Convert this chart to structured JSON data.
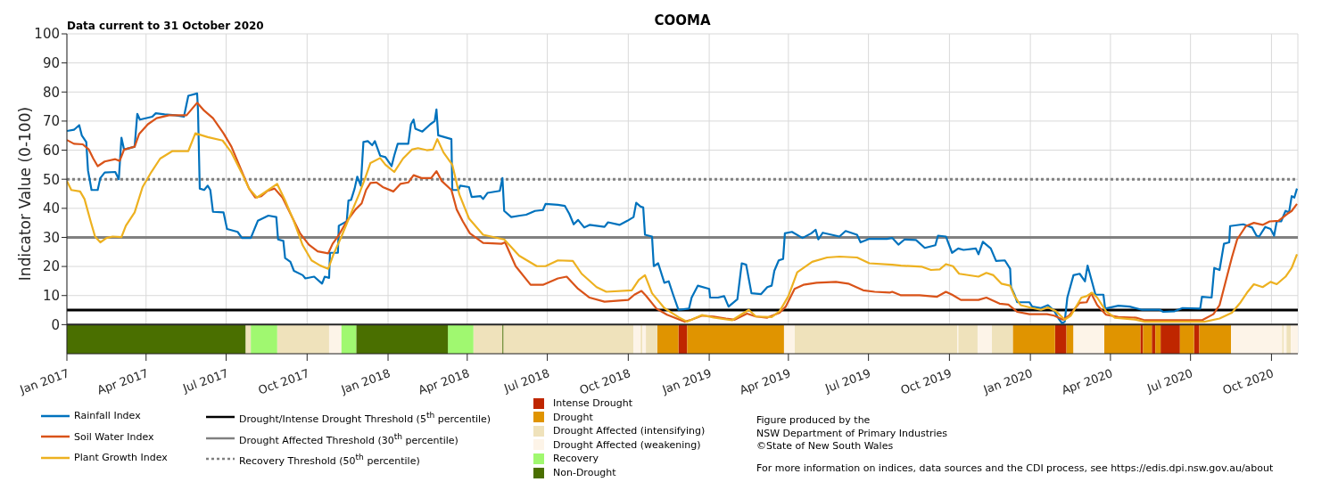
{
  "chart_data": {
    "type": "line",
    "title": "COOMA",
    "ylabel": "Indicator Value (0-100)",
    "annotations": [
      "Data current to 31 October 2020",
      "Figure produced by the",
      "NSW Department of Primary Industries",
      "©State of New South Wales",
      "For more information on indices, data sources and the CDI process, see https://edis.dpi.nsw.gov.au/about"
    ],
    "xlim": [
      "2017-01-01",
      "2020-10-31"
    ],
    "xticks": [
      {
        "value": "2017-01",
        "label": "Jan 2017"
      },
      {
        "value": "2017-04",
        "label": "Apr 2017"
      },
      {
        "value": "2017-07",
        "label": "Jul 2017"
      },
      {
        "value": "2017-10",
        "label": "Oct 2017"
      },
      {
        "value": "2018-01",
        "label": "Jan 2018"
      },
      {
        "value": "2018-04",
        "label": "Apr 2018"
      },
      {
        "value": "2018-07",
        "label": "Jul 2018"
      },
      {
        "value": "2018-10",
        "label": "Oct 2018"
      },
      {
        "value": "2019-01",
        "label": "Jan 2019"
      },
      {
        "value": "2019-04",
        "label": "Apr 2019"
      },
      {
        "value": "2019-07",
        "label": "Jul 2019"
      },
      {
        "value": "2019-10",
        "label": "Oct 2019"
      },
      {
        "value": "2020-01",
        "label": "Jan 2020"
      },
      {
        "value": "2020-04",
        "label": "Apr 2020"
      },
      {
        "value": "2020-07",
        "label": "Jul 2020"
      },
      {
        "value": "2020-10",
        "label": "Oct 2020"
      }
    ],
    "ylim": [
      -10,
      100
    ],
    "yticks": [
      0,
      10,
      20,
      30,
      40,
      50,
      60,
      70,
      80,
      90,
      100
    ],
    "grid": true,
    "legend": "bottom",
    "marker": "none",
    "line_style": "solid",
    "series": [
      {
        "name": "Rainfall Index",
        "color": "#0072bd",
        "x": [
          "2017-01-01",
          "2017-01-09",
          "2017-01-15",
          "2017-01-18",
          "2017-01-23",
          "2017-01-25",
          "2017-01-29",
          "2017-02-05",
          "2017-02-08",
          "2017-02-13",
          "2017-02-25",
          "2017-03-01",
          "2017-03-04",
          "2017-03-07",
          "2017-03-19",
          "2017-03-22",
          "2017-03-25",
          "2017-04-08",
          "2017-04-12",
          "2017-04-22",
          "2017-05-04",
          "2017-05-14",
          "2017-05-19",
          "2017-05-29",
          "2017-05-30",
          "2017-06-01",
          "2017-06-06",
          "2017-06-10",
          "2017-06-13",
          "2017-06-16",
          "2017-06-28",
          "2017-07-02",
          "2017-07-14",
          "2017-07-19",
          "2017-07-29",
          "2017-08-06",
          "2017-08-18",
          "2017-08-27",
          "2017-08-29",
          "2017-09-04",
          "2017-09-06",
          "2017-09-12",
          "2017-09-16",
          "2017-09-26",
          "2017-09-29",
          "2017-10-09",
          "2017-10-18",
          "2017-10-21",
          "2017-10-26",
          "2017-10-27",
          "2017-11-05",
          "2017-11-06",
          "2017-11-15",
          "2017-11-17",
          "2017-11-20",
          "2017-11-24",
          "2017-11-27",
          "2017-12-01",
          "2017-12-04",
          "2017-12-09",
          "2017-12-14",
          "2017-12-17",
          "2017-12-23",
          "2017-12-29",
          "2018-01-05",
          "2018-01-08",
          "2018-01-12",
          "2018-01-24",
          "2018-01-27",
          "2018-01-30",
          "2018-02-01",
          "2018-02-09",
          "2018-02-18",
          "2018-02-23",
          "2018-02-25",
          "2018-02-27",
          "2018-03-14",
          "2018-03-15",
          "2018-03-22",
          "2018-03-24",
          "2018-04-03",
          "2018-04-06",
          "2018-04-16",
          "2018-04-19",
          "2018-04-24",
          "2018-05-08",
          "2018-05-11",
          "2018-05-13",
          "2018-05-21",
          "2018-05-31",
          "2018-06-07",
          "2018-06-17",
          "2018-06-26",
          "2018-06-29",
          "2018-07-13",
          "2018-07-21",
          "2018-07-26",
          "2018-07-31",
          "2018-08-05",
          "2018-08-12",
          "2018-08-18",
          "2018-09-04",
          "2018-09-08",
          "2018-09-21",
          "2018-09-30",
          "2018-10-07",
          "2018-10-10",
          "2018-10-15",
          "2018-10-18",
          "2018-10-20",
          "2018-10-28",
          "2018-10-30",
          "2018-11-04",
          "2018-11-11",
          "2018-11-16",
          "2018-11-21",
          "2018-11-27",
          "2018-12-09",
          "2018-12-12",
          "2018-12-19",
          "2019-01-01",
          "2019-01-02",
          "2019-01-11",
          "2019-01-18",
          "2019-01-23",
          "2019-02-02",
          "2019-02-07",
          "2019-02-12",
          "2019-02-18",
          "2019-03-01",
          "2019-03-08",
          "2019-03-13",
          "2019-03-16",
          "2019-03-21",
          "2019-03-26",
          "2019-03-28",
          "2019-04-05",
          "2019-04-17",
          "2019-04-27",
          "2019-05-02",
          "2019-05-05",
          "2019-05-10",
          "2019-05-29",
          "2019-06-05",
          "2019-06-18",
          "2019-06-22",
          "2019-07-02",
          "2019-07-22",
          "2019-07-28",
          "2019-08-04",
          "2019-08-11",
          "2019-08-24",
          "2019-09-03",
          "2019-09-15",
          "2019-09-18",
          "2019-09-27",
          "2019-10-04",
          "2019-10-11",
          "2019-10-17",
          "2019-10-31",
          "2019-11-03",
          "2019-11-08",
          "2019-11-17",
          "2019-11-23",
          "2019-12-03",
          "2019-12-09",
          "2019-12-10",
          "2019-12-14",
          "2019-12-17",
          "2019-12-31",
          "2020-01-03",
          "2020-01-13",
          "2020-01-21",
          "2020-01-28",
          "2020-02-02",
          "2020-02-06",
          "2020-02-09",
          "2020-02-12",
          "2020-02-19",
          "2020-02-26",
          "2020-03-03",
          "2020-03-06",
          "2020-03-10",
          "2020-03-15",
          "2020-03-24",
          "2020-03-26",
          "2020-04-10",
          "2020-04-23",
          "2020-05-07",
          "2020-05-27",
          "2020-05-31",
          "2020-06-13",
          "2020-06-22",
          "2020-07-12",
          "2020-07-14",
          "2020-07-25",
          "2020-07-28",
          "2020-08-03",
          "2020-08-08",
          "2020-08-14",
          "2020-08-15",
          "2020-08-30",
          "2020-09-09",
          "2020-09-14",
          "2020-09-17",
          "2020-09-24",
          "2020-09-30",
          "2020-10-04",
          "2020-10-07",
          "2020-10-12",
          "2020-10-17",
          "2020-10-21",
          "2020-10-24",
          "2020-10-27",
          "2020-10-30"
        ],
        "values": [
          66.6,
          67,
          68.6,
          65,
          62.8,
          53,
          46.3,
          46.3,
          50.4,
          52.3,
          52.5,
          50,
          64.3,
          60.2,
          61.2,
          72.5,
          70.5,
          71.5,
          72.7,
          72.3,
          72,
          71.5,
          78.7,
          79.5,
          73.6,
          46.8,
          46.3,
          47.8,
          46.3,
          38.8,
          38.6,
          32.9,
          31.9,
          29.8,
          29.8,
          35.7,
          37.5,
          37,
          29.3,
          28.8,
          22.9,
          21.6,
          18.5,
          17,
          15.9,
          16.5,
          14.1,
          16.5,
          16.1,
          24.7,
          24.7,
          34,
          35.5,
          42.7,
          42.9,
          46.8,
          50.9,
          47.8,
          62.8,
          63.1,
          61.7,
          63.1,
          58.1,
          57.6,
          54.5,
          58.1,
          62.2,
          62.2,
          68.9,
          70.5,
          67.4,
          66.4,
          68.9,
          70,
          74,
          65.1,
          63.8,
          46.3,
          46.3,
          47.8,
          47.3,
          43.9,
          44.2,
          43.2,
          45.3,
          46,
          50.4,
          39.1,
          37,
          37.5,
          37.8,
          39.1,
          39.4,
          41.5,
          41.2,
          40.8,
          38.1,
          34.5,
          36,
          33.4,
          34.3,
          33.6,
          35.2,
          34.3,
          35.7,
          37,
          41.9,
          40.6,
          40.3,
          30.9,
          30.3,
          20.1,
          21.1,
          14.4,
          14.9,
          10.3,
          5.1,
          5.5,
          9.3,
          13.4,
          12.3,
          9.3,
          9.3,
          9.8,
          6.2,
          8.7,
          21.1,
          20.6,
          10.8,
          10.5,
          12.9,
          13.4,
          18.5,
          22.1,
          22.6,
          31.4,
          31.9,
          29.8,
          31.4,
          32.6,
          29.3,
          31.6,
          30.3,
          32.2,
          30.9,
          28.3,
          29.5,
          29.5,
          29.8,
          27.5,
          29.3,
          29.1,
          26.4,
          27.3,
          30.6,
          30.3,
          24.7,
          26.2,
          25.7,
          26.2,
          24.2,
          28.5,
          26.2,
          21.9,
          22.1,
          19.2,
          12.9,
          10.3,
          7.7,
          7.7,
          6.2,
          5.7,
          6.7,
          4.8,
          2.1,
          0.5,
          1,
          9.3,
          17,
          17.5,
          14.9,
          20.3,
          15.9,
          10.3,
          10.3,
          5.5,
          6.5,
          6.2,
          5.1,
          5.1,
          4.4,
          4.6,
          5.7,
          5.5,
          9.6,
          9.3,
          19.5,
          18.8,
          27.8,
          28.3,
          33.9,
          34.5,
          33.4,
          30.6,
          30.3,
          33.6,
          32.9,
          30.6,
          35.5,
          35.5,
          39.1,
          38.6,
          44.2,
          43.7,
          46.8
        ]
      },
      {
        "name": "Soil Water Index",
        "color": "#d95319",
        "x": [
          "2017-01-01",
          "2017-01-09",
          "2017-01-19",
          "2017-01-26",
          "2017-01-31",
          "2017-02-05",
          "2017-02-13",
          "2017-02-25",
          "2017-03-02",
          "2017-03-07",
          "2017-03-19",
          "2017-03-24",
          "2017-04-03",
          "2017-04-13",
          "2017-04-27",
          "2017-05-17",
          "2017-05-29",
          "2017-06-06",
          "2017-06-16",
          "2017-06-28",
          "2017-07-07",
          "2017-07-17",
          "2017-07-27",
          "2017-08-03",
          "2017-08-10",
          "2017-08-17",
          "2017-08-25",
          "2017-09-03",
          "2017-09-13",
          "2017-09-23",
          "2017-10-03",
          "2017-10-13",
          "2017-10-25",
          "2017-10-30",
          "2017-11-05",
          "2017-11-15",
          "2017-11-25",
          "2017-12-02",
          "2017-12-07",
          "2017-12-12",
          "2017-12-19",
          "2017-12-26",
          "2018-01-07",
          "2018-01-15",
          "2018-01-24",
          "2018-01-30",
          "2018-02-08",
          "2018-02-19",
          "2018-02-25",
          "2018-03-03",
          "2018-03-14",
          "2018-03-20",
          "2018-03-27",
          "2018-04-04",
          "2018-04-19",
          "2018-05-10",
          "2018-05-14",
          "2018-05-26",
          "2018-06-12",
          "2018-06-26",
          "2018-07-13",
          "2018-07-23",
          "2018-08-05",
          "2018-08-18",
          "2018-09-04",
          "2018-10-01",
          "2018-10-08",
          "2018-10-16",
          "2018-10-21",
          "2018-11-02",
          "2018-11-14",
          "2018-11-27",
          "2018-12-04",
          "2018-12-12",
          "2018-12-24",
          "2019-01-06",
          "2019-01-20",
          "2019-01-30",
          "2019-02-13",
          "2019-02-23",
          "2019-03-08",
          "2019-03-22",
          "2019-03-29",
          "2019-04-08",
          "2019-04-18",
          "2019-05-03",
          "2019-05-25",
          "2019-06-08",
          "2019-06-25",
          "2019-07-08",
          "2019-07-25",
          "2019-07-28",
          "2019-08-07",
          "2019-08-28",
          "2019-09-17",
          "2019-09-27",
          "2019-10-04",
          "2019-10-14",
          "2019-11-03",
          "2019-11-12",
          "2019-11-27",
          "2019-12-07",
          "2019-12-17",
          "2019-12-31",
          "2020-01-20",
          "2020-01-28",
          "2020-02-07",
          "2020-02-14",
          "2020-02-26",
          "2020-03-05",
          "2020-03-10",
          "2020-03-17",
          "2020-03-27",
          "2020-04-10",
          "2020-04-30",
          "2020-05-10",
          "2020-07-14",
          "2020-07-27",
          "2020-08-03",
          "2020-08-10",
          "2020-08-17",
          "2020-08-23",
          "2020-09-02",
          "2020-09-11",
          "2020-09-21",
          "2020-09-29",
          "2020-10-09",
          "2020-10-19",
          "2020-10-24",
          "2020-10-30"
        ],
        "values": [
          63.5,
          62.2,
          62,
          60.2,
          57.1,
          54.5,
          56.1,
          56.9,
          56.3,
          60.2,
          61.2,
          65.5,
          68.9,
          71,
          72,
          72,
          76.3,
          73.6,
          71,
          65.8,
          61.2,
          54,
          46.8,
          43.7,
          44.2,
          46,
          46.8,
          43.7,
          37.6,
          31.4,
          27.5,
          25.2,
          24.5,
          27.8,
          30.3,
          35.5,
          39.6,
          41.7,
          46.3,
          48.7,
          48.9,
          47.3,
          45.8,
          48.4,
          48.9,
          51.4,
          50.4,
          50.4,
          52.8,
          49.4,
          46.3,
          39.6,
          35.5,
          31.4,
          28.1,
          27.8,
          28.3,
          20.1,
          13.7,
          13.7,
          15.9,
          16.5,
          12.3,
          9.3,
          7.9,
          8.5,
          10.3,
          11.6,
          10,
          5.5,
          3.4,
          1.9,
          1,
          1.7,
          3.1,
          2.8,
          2.1,
          1.7,
          3.8,
          2.8,
          2.4,
          4.1,
          6.2,
          12.3,
          13.7,
          14.4,
          14.7,
          14.1,
          11.8,
          11.3,
          11,
          11.3,
          10.1,
          10.1,
          9.6,
          11.3,
          10.3,
          8.5,
          8.5,
          9.3,
          7.2,
          6.9,
          4.4,
          3.6,
          3.6,
          3.1,
          1.7,
          3.1,
          7.5,
          7.7,
          10.8,
          6.7,
          3.4,
          2.6,
          2.4,
          1.5,
          1.5,
          3.6,
          6.7,
          14.9,
          23.1,
          29.3,
          33.9,
          35,
          34.3,
          35.5,
          35.7,
          38.1,
          39.1,
          41.5
        ]
      },
      {
        "name": "Plant Growth Index",
        "color": "#edb120",
        "x": [
          "2017-01-01",
          "2017-01-06",
          "2017-01-16",
          "2017-01-21",
          "2017-01-28",
          "2017-02-02",
          "2017-02-08",
          "2017-02-15",
          "2017-02-22",
          "2017-03-04",
          "2017-03-09",
          "2017-03-19",
          "2017-03-28",
          "2017-04-07",
          "2017-04-17",
          "2017-05-01",
          "2017-05-19",
          "2017-05-27",
          "2017-06-10",
          "2017-06-27",
          "2017-07-07",
          "2017-07-19",
          "2017-07-27",
          "2017-08-05",
          "2017-08-13",
          "2017-08-28",
          "2017-09-06",
          "2017-09-16",
          "2017-09-26",
          "2017-10-06",
          "2017-10-16",
          "2017-10-25",
          "2017-10-31",
          "2017-11-09",
          "2017-11-19",
          "2017-11-29",
          "2017-12-06",
          "2017-12-12",
          "2017-12-23",
          "2017-12-29",
          "2018-01-08",
          "2018-01-18",
          "2018-01-28",
          "2018-02-04",
          "2018-02-14",
          "2018-02-21",
          "2018-02-26",
          "2018-03-05",
          "2018-03-15",
          "2018-03-23",
          "2018-04-03",
          "2018-04-19",
          "2018-05-13",
          "2018-05-30",
          "2018-06-19",
          "2018-06-29",
          "2018-07-13",
          "2018-07-30",
          "2018-08-09",
          "2018-08-26",
          "2018-09-06",
          "2018-10-05",
          "2018-10-13",
          "2018-10-20",
          "2018-10-28",
          "2018-11-11",
          "2018-11-27",
          "2018-12-07",
          "2018-12-24",
          "2019-01-06",
          "2019-01-27",
          "2019-02-08",
          "2019-02-15",
          "2019-02-23",
          "2019-03-13",
          "2019-03-22",
          "2019-04-01",
          "2019-04-11",
          "2019-04-28",
          "2019-05-15",
          "2019-05-29",
          "2019-06-18",
          "2019-07-02",
          "2019-07-28",
          "2019-08-07",
          "2019-08-31",
          "2019-09-10",
          "2019-09-20",
          "2019-09-27",
          "2019-10-05",
          "2019-10-12",
          "2019-11-03",
          "2019-11-12",
          "2019-11-20",
          "2019-11-29",
          "2019-12-09",
          "2019-12-14",
          "2019-12-21",
          "2020-01-03",
          "2020-01-13",
          "2020-01-21",
          "2020-01-30",
          "2020-02-09",
          "2020-02-16",
          "2020-02-28",
          "2020-03-05",
          "2020-03-11",
          "2020-03-17",
          "2020-03-27",
          "2020-04-06",
          "2020-04-30",
          "2020-05-10",
          "2020-07-17",
          "2020-08-03",
          "2020-08-17",
          "2020-08-27",
          "2020-09-04",
          "2020-09-11",
          "2020-09-21",
          "2020-09-30",
          "2020-10-07",
          "2020-10-17",
          "2020-10-24",
          "2020-10-30"
        ],
        "values": [
          49.4,
          46.3,
          45.8,
          43.2,
          35.5,
          30.3,
          28.3,
          29.8,
          30.3,
          30.1,
          34,
          38.6,
          47.3,
          52.5,
          57.1,
          59.7,
          59.7,
          65.8,
          64.5,
          63.3,
          59.2,
          52,
          46.8,
          43.7,
          45.3,
          48.4,
          42.7,
          35.5,
          27.3,
          22.1,
          20.3,
          19.2,
          24.2,
          30.3,
          37.6,
          44.8,
          50.4,
          55.6,
          57.3,
          55,
          52.5,
          57.1,
          60.2,
          60.7,
          60,
          60.2,
          63.8,
          59.2,
          55,
          44.8,
          36.5,
          30.9,
          29.3,
          23.7,
          20.1,
          20.1,
          22.1,
          21.9,
          17.5,
          12.9,
          11.3,
          11.8,
          15.4,
          17,
          10.8,
          5.7,
          2.6,
          1,
          3.3,
          2.4,
          1.5,
          3.8,
          5.1,
          2.8,
          2.6,
          4.6,
          9.8,
          18,
          21.6,
          23.1,
          23.4,
          23.1,
          21.1,
          20.6,
          20.3,
          19.9,
          18.8,
          19,
          20.8,
          20.1,
          17.5,
          16.5,
          17.8,
          17,
          14.1,
          13.4,
          9.8,
          6.7,
          5.7,
          5.1,
          5.9,
          4.6,
          1.7,
          3.1,
          9.3,
          9.8,
          11,
          9.3,
          4.6,
          2.4,
          1.7,
          1,
          1,
          2.1,
          4.1,
          7.7,
          11.3,
          13.9,
          12.9,
          14.7,
          13.9,
          16.5,
          19.5,
          24.2
        ]
      }
    ],
    "ref_lines": [
      {
        "axis": "y",
        "value": 5,
        "label": "Drought/Intense Drought Threshold (5$^{th}$ percentile)",
        "color": "#000000",
        "line_style": "solid"
      },
      {
        "axis": "y",
        "value": 30,
        "label": "Drought Affected Threshold (30$^{th}$ percentile)",
        "color": "#808080",
        "line_style": "solid"
      },
      {
        "axis": "y",
        "value": 50,
        "label": "Recovery Threshold (50$^{th}$ percentile)",
        "color": "#808080",
        "line_style": "dotted"
      }
    ],
    "bands": [
      {
        "axis": "x",
        "from": "2018-11-27",
        "to": "2018-12-07",
        "label": "Intense Drought",
        "color": "#bf2600"
      },
      {
        "axis": "x",
        "from": "2020-01-29",
        "to": "2020-02-11",
        "color": "#bf2600"
      },
      {
        "axis": "x",
        "from": "2020-05-05",
        "to": "2020-05-08",
        "color": "#bf2600"
      },
      {
        "axis": "x",
        "from": "2020-05-18",
        "to": "2020-05-22",
        "color": "#bf2600"
      },
      {
        "axis": "x",
        "from": "2020-05-28",
        "to": "2020-06-19",
        "color": "#bf2600"
      },
      {
        "axis": "x",
        "from": "2020-07-05",
        "to": "2020-07-11",
        "color": "#bf2600"
      },
      {
        "axis": "x",
        "from": "2018-11-03",
        "to": "2018-11-27",
        "label": "Drought",
        "color": "#e09400"
      },
      {
        "axis": "x",
        "from": "2018-12-07",
        "to": "2019-03-27",
        "color": "#e09400"
      },
      {
        "axis": "x",
        "from": "2019-12-12",
        "to": "2020-01-29",
        "color": "#e09400"
      },
      {
        "axis": "x",
        "from": "2020-02-11",
        "to": "2020-02-19",
        "color": "#e09400"
      },
      {
        "axis": "x",
        "from": "2020-03-25",
        "to": "2020-05-05",
        "color": "#e09400"
      },
      {
        "axis": "x",
        "from": "2020-05-08",
        "to": "2020-05-18",
        "color": "#e09400"
      },
      {
        "axis": "x",
        "from": "2020-05-22",
        "to": "2020-05-28",
        "color": "#e09400"
      },
      {
        "axis": "x",
        "from": "2020-06-19",
        "to": "2020-07-05",
        "color": "#e09400"
      },
      {
        "axis": "x",
        "from": "2020-07-11",
        "to": "2020-08-16",
        "color": "#e09400"
      },
      {
        "axis": "x",
        "from": "2017-07-23",
        "to": "2017-07-29",
        "label": "Drought Affected (intensifying)",
        "color": "#efe2bb"
      },
      {
        "axis": "x",
        "from": "2017-08-28",
        "to": "2017-10-26",
        "color": "#efe2bb"
      },
      {
        "axis": "x",
        "from": "2018-04-08",
        "to": "2018-05-11",
        "color": "#efe2bb"
      },
      {
        "axis": "x",
        "from": "2018-05-12",
        "to": "2018-10-07",
        "color": "#efe2bb"
      },
      {
        "axis": "x",
        "from": "2018-10-15",
        "to": "2018-10-17",
        "color": "#efe2bb"
      },
      {
        "axis": "x",
        "from": "2018-10-21",
        "to": "2018-11-03",
        "color": "#efe2bb"
      },
      {
        "axis": "x",
        "from": "2019-04-08",
        "to": "2019-10-10",
        "color": "#efe2bb"
      },
      {
        "axis": "x",
        "from": "2019-10-11",
        "to": "2019-11-02",
        "color": "#efe2bb"
      },
      {
        "axis": "x",
        "from": "2019-11-18",
        "to": "2019-12-12",
        "color": "#efe2bb"
      },
      {
        "axis": "x",
        "from": "2020-10-13",
        "to": "2020-10-15",
        "color": "#efe2bb"
      },
      {
        "axis": "x",
        "from": "2020-10-18",
        "to": "2020-10-23",
        "color": "#efe2bb"
      },
      {
        "axis": "x",
        "from": "2017-10-26",
        "to": "2017-11-09",
        "label": "Drought Affected (weakening)",
        "color": "#fdf4e8"
      },
      {
        "axis": "x",
        "from": "2018-10-07",
        "to": "2018-10-15",
        "color": "#fdf4e8"
      },
      {
        "axis": "x",
        "from": "2018-10-17",
        "to": "2018-10-21",
        "color": "#fdf4e8"
      },
      {
        "axis": "x",
        "from": "2019-03-27",
        "to": "2019-04-08",
        "color": "#fdf4e8"
      },
      {
        "axis": "x",
        "from": "2019-10-10",
        "to": "2019-10-11",
        "color": "#fdf4e8"
      },
      {
        "axis": "x",
        "from": "2019-11-02",
        "to": "2019-11-18",
        "color": "#fdf4e8"
      },
      {
        "axis": "x",
        "from": "2020-02-19",
        "to": "2020-03-25",
        "color": "#fdf4e8"
      },
      {
        "axis": "x",
        "from": "2020-08-16",
        "to": "2020-10-13",
        "color": "#fdf4e8"
      },
      {
        "axis": "x",
        "from": "2020-10-15",
        "to": "2020-10-18",
        "color": "#fdf4e8"
      },
      {
        "axis": "x",
        "from": "2020-10-23",
        "to": "2020-10-31",
        "color": "#fdf4e8"
      },
      {
        "axis": "x",
        "from": "2017-07-29",
        "to": "2017-08-28",
        "label": "Recovery",
        "color": "#a0f870"
      },
      {
        "axis": "x",
        "from": "2017-11-09",
        "to": "2017-11-26",
        "color": "#a0f870"
      },
      {
        "axis": "x",
        "from": "2018-03-10",
        "to": "2018-04-08",
        "color": "#a0f870"
      },
      {
        "axis": "x",
        "from": "2017-01-01",
        "to": "2017-07-23",
        "label": "Non-Drought",
        "color": "#4a6f00"
      },
      {
        "axis": "x",
        "from": "2017-11-26",
        "to": "2018-03-10",
        "color": "#4a6f00"
      },
      {
        "axis": "x",
        "from": "2018-05-11",
        "to": "2018-05-12",
        "color": "#4a6f00"
      }
    ]
  }
}
